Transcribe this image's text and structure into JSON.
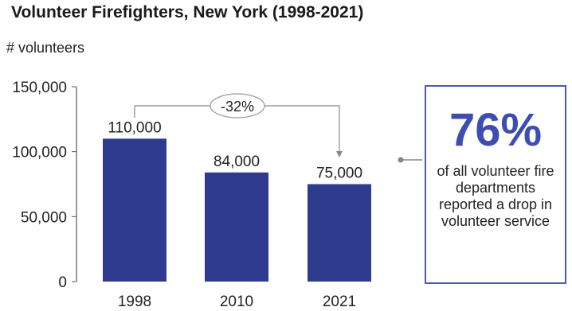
{
  "chart_data": {
    "type": "bar",
    "title": "Volunteer Firefighters, New York (1998-2021)",
    "ylabel": "# volunteers",
    "xlabel": "",
    "categories": [
      "1998",
      "2010",
      "2021"
    ],
    "values": [
      110000,
      84000,
      75000
    ],
    "data_labels": [
      "110,000",
      "84,000",
      "75,000"
    ],
    "ylim": [
      0,
      150000
    ],
    "yticks": [
      0,
      50000,
      100000,
      150000
    ],
    "ytick_labels": [
      "0",
      "50,000",
      "100,000",
      "150,000"
    ],
    "grid": false,
    "bar_color": "#2e3b8e",
    "annotation": {
      "label": "-32%",
      "from": "1998",
      "to": "2021"
    }
  },
  "callout": {
    "percent": "76%",
    "text": "of all volunteer fire departments reported a drop in volunteer service",
    "border_color": "#4a5bb0",
    "percent_color": "#3e4db0"
  }
}
